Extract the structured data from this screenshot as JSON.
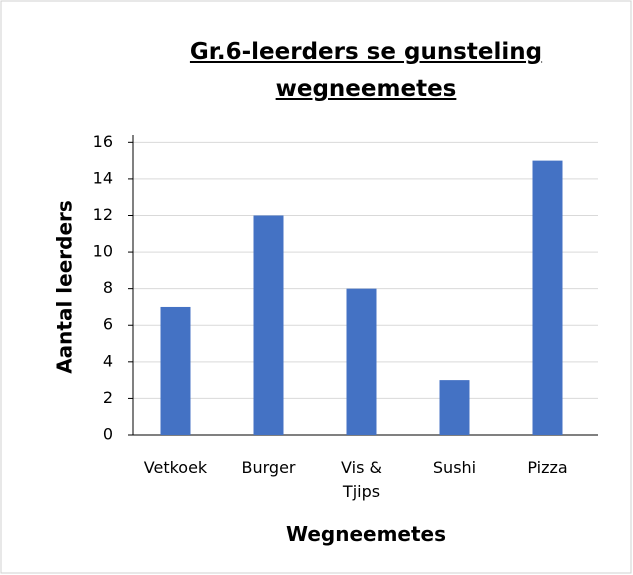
{
  "chart_data": {
    "type": "bar",
    "title": "Gr.6-leerders se gunsteling wegneemetes",
    "categories": [
      "Vetkoek",
      "Burger",
      "Vis & Tjips",
      "Sushi",
      "Pizza"
    ],
    "values": [
      7,
      12,
      8,
      3,
      15
    ],
    "color": "#4472c4",
    "xlabel": "Wegneemetes",
    "ylabel": "Aantal leerders",
    "ylim": [
      0,
      16.4
    ],
    "yticks": [
      0,
      2,
      4,
      6,
      8,
      10,
      12,
      14,
      16
    ],
    "grid": true
  }
}
